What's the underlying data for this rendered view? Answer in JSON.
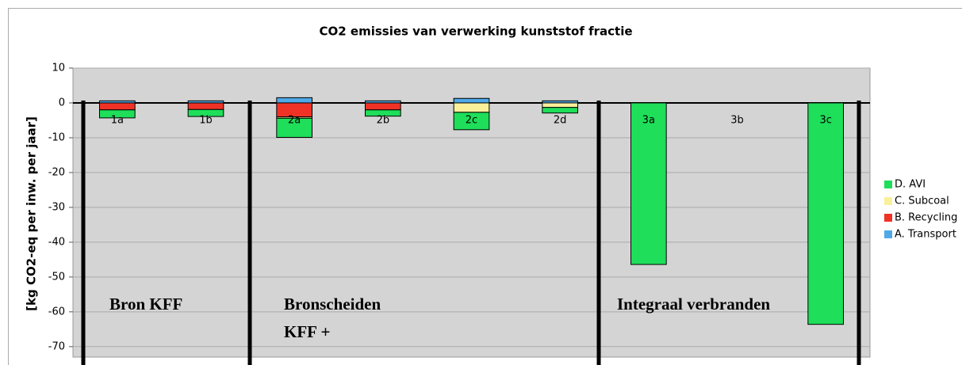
{
  "chart_data": {
    "type": "bar",
    "stacked": true,
    "title": "CO2 emissies van verwerking kunststof fractie",
    "y_label": "[kg CO2-eq per inw. per jaar]",
    "categories": [
      "1a",
      "1b",
      "2a",
      "2b",
      "2c",
      "2d",
      "3a",
      "3b",
      "3c"
    ],
    "series": [
      {
        "name": "A. Transport",
        "color": "#4fa9e6",
        "values": [
          0.6,
          0.6,
          1.5,
          0.6,
          1.3,
          0.6,
          0,
          0,
          0
        ]
      },
      {
        "name": "B. Recycling",
        "color": "#f03226",
        "values": [
          -2,
          -1.9,
          -4,
          -2,
          0,
          0,
          0,
          0,
          0
        ]
      },
      {
        "name": "C. Subcoal",
        "color": "#faf09a",
        "values": [
          0,
          0,
          -0.4,
          0,
          -2.7,
          -1.3,
          0,
          0,
          0
        ]
      },
      {
        "name": "D. AVI",
        "color": "#1ede5a",
        "values": [
          -2.3,
          -2,
          -5.5,
          -1.8,
          -5,
          -1.6,
          -46.4,
          0,
          -63.6
        ]
      }
    ],
    "ylim": [
      -73,
      10
    ],
    "yticks": [
      10,
      0,
      -10,
      -20,
      -30,
      -40,
      -50,
      -60,
      -70
    ],
    "grid": true,
    "legend": "right",
    "annotations": [
      "Bron KFF",
      "Bronscheiden",
      "KFF +",
      "Integraal verbranden"
    ]
  }
}
